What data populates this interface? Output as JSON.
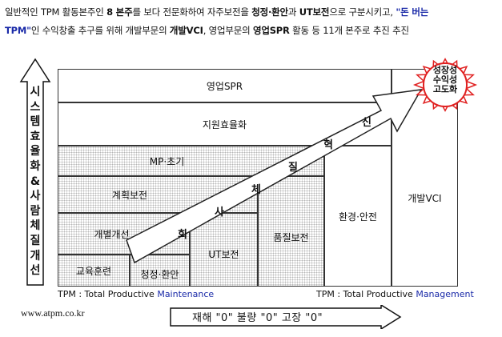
{
  "intro": {
    "line1": [
      {
        "t": "일반적인 TPM 활동본주인 "
      },
      {
        "t": "8 본주",
        "b": true
      },
      {
        "t": "를 보다 전문화하여 자주보전을 "
      },
      {
        "t": "청정·환안",
        "b": true
      },
      {
        "t": "과 "
      },
      {
        "t": "UT보전",
        "b": true
      },
      {
        "t": "으로 구분시키고, "
      },
      {
        "t": "\"돈 버는",
        "blue": true
      }
    ],
    "line2": [
      {
        "t": "TPM\"",
        "blue": true
      },
      {
        "t": "인 수익창출 추구를 위해 개발부문의 "
      },
      {
        "t": "개발VCI",
        "b": true
      },
      {
        "t": ", 영업부문의 "
      },
      {
        "t": "영업SPR",
        "b": true
      },
      {
        "t": " 활동 등 11개 본주로 추진 추진"
      }
    ]
  },
  "left_arrow_chars": [
    "시",
    "스",
    "템",
    "효",
    "율",
    "화",
    "&",
    "사",
    "람",
    "체",
    "질",
    "개",
    "선"
  ],
  "pillars": {
    "sales": "영업SPR",
    "support": "지원효율화",
    "mp": "MP·초기",
    "planned": "계획보전",
    "individual": "개별개선",
    "training": "교육훈련",
    "clean": "청정·환안",
    "ut": "UT보전",
    "quality": "품질보전",
    "env": "환경·안전",
    "dev": "개발VCI"
  },
  "innovation_chars": [
    "회",
    "사",
    "체",
    "질",
    "혁",
    "신"
  ],
  "sun_text": [
    "성장성",
    "수익성",
    "고도화"
  ],
  "footer": {
    "left_prefix": "TPM : Total Productive ",
    "left_accent": "Maintenance",
    "right_prefix": "TPM : Total Productive ",
    "right_accent": "Management",
    "website": "www.atpm.co.kr",
    "goal": "재해 \"0\" 불량 \"0\" 고장 \"0\""
  },
  "colors": {
    "accent_blue": "#1a2aa8",
    "sun_red": "#e02020",
    "dot_gray": "#b8b8b8"
  }
}
